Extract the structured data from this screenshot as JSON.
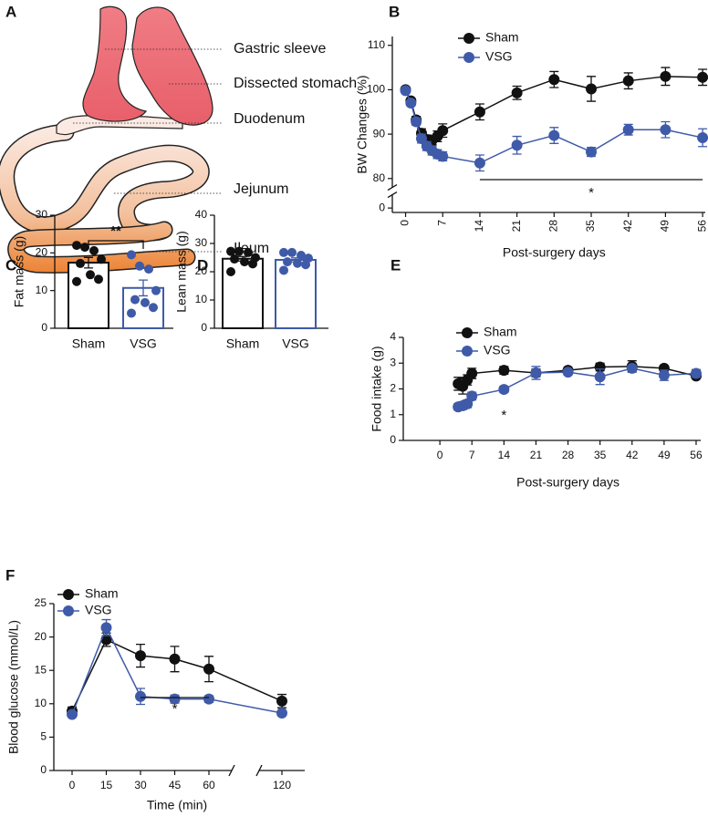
{
  "diagram": {
    "panel": "A",
    "labels": [
      "Gastric sleeve",
      "Dissected stomach",
      "Duodenum",
      "Jejunum",
      "Ileum"
    ]
  },
  "chart_data": [
    {
      "panel": "B",
      "type": "line",
      "x_label": "Post-surgery days",
      "y_label": "BW Changes (%)",
      "x": [
        0,
        1,
        2,
        3,
        4,
        5,
        6,
        7,
        14,
        21,
        28,
        35,
        42,
        49,
        56
      ],
      "xlim": [
        -2.5,
        56.5
      ],
      "xticks": [
        0,
        7,
        14,
        21,
        28,
        35,
        42,
        49,
        56
      ],
      "ylim": [
        -1,
        112
      ],
      "y_break": [
        3,
        78
      ],
      "yticks": [
        0,
        80,
        90,
        100,
        110
      ],
      "legend": "upper left",
      "series": [
        {
          "name": "Sham",
          "color": "#111111",
          "values": [
            100,
            97.5,
            93.2,
            90.2,
            88.8,
            88.6,
            89.5,
            90.8,
            95,
            99.3,
            102.3,
            100.2,
            102,
            103,
            102.8
          ],
          "errors": [
            0.3,
            0.6,
            0.8,
            1,
            1,
            1,
            1.2,
            1.5,
            1.8,
            1.5,
            1.8,
            2.8,
            1.8,
            2,
            1.8
          ]
        },
        {
          "name": "VSG",
          "color": "#3f5aa8",
          "values": [
            99.8,
            97,
            92.8,
            89,
            87.3,
            86.3,
            85.5,
            85,
            83.5,
            87.5,
            89.7,
            86,
            91,
            91,
            89.2
          ],
          "errors": [
            0.3,
            0.6,
            0.8,
            1,
            1,
            1,
            1,
            1,
            1.8,
            2,
            1.8,
            1,
            1.2,
            1.8,
            2
          ]
        }
      ],
      "significance": {
        "label": "*",
        "x": [
          14,
          56
        ]
      }
    },
    {
      "panel": "C",
      "type": "bar",
      "y_label": "Fat mass (g)",
      "categories": [
        "Sham",
        "VSG"
      ],
      "values": [
        17.4,
        10.7
      ],
      "errors": [
        1.4,
        2.1
      ],
      "points": [
        [
          22,
          21.5,
          20.6,
          18.3,
          17.2,
          14.2,
          13,
          12.4
        ],
        [
          19.5,
          16.5,
          15.7,
          10,
          7.6,
          6.8,
          5.5,
          4
        ]
      ],
      "colors": [
        "#111111",
        "#3f5aa8"
      ],
      "ylim": [
        0,
        30
      ],
      "yticks": [
        0,
        10,
        20,
        30
      ],
      "significance": {
        "label": "**"
      }
    },
    {
      "panel": "D",
      "type": "bar",
      "y_label": "Lean mass (g)",
      "categories": [
        "Sham",
        "VSG"
      ],
      "values": [
        24.6,
        24.2
      ],
      "errors": [
        0.8,
        0.7
      ],
      "points": [
        [
          27.2,
          27.2,
          26.8,
          25,
          24.5,
          23.5,
          22.8,
          20
        ],
        [
          26.8,
          26.8,
          25.8,
          24.8,
          23.5,
          23,
          22.5,
          20.5
        ]
      ],
      "colors": [
        "#111111",
        "#3f5aa8"
      ],
      "ylim": [
        0,
        40
      ],
      "yticks": [
        0,
        10,
        20,
        30,
        40
      ]
    },
    {
      "panel": "E",
      "type": "line",
      "x_label": "Post-surgery days",
      "y_label": "Food intake (g)",
      "x": [
        4,
        5,
        6,
        7,
        14,
        21,
        28,
        35,
        42,
        49,
        56
      ],
      "xlim": [
        -8,
        57
      ],
      "xticks": [
        0,
        7,
        14,
        21,
        28,
        35,
        42,
        49,
        56
      ],
      "ylim": [
        0,
        4
      ],
      "yticks": [
        0,
        1,
        2,
        3,
        4
      ],
      "legend": "upper left",
      "series": [
        {
          "name": "Sham",
          "color": "#111111",
          "values": [
            2.2,
            2.1,
            2.35,
            2.6,
            2.72,
            2.62,
            2.72,
            2.85,
            2.87,
            2.8,
            2.5
          ],
          "errors": [
            0.25,
            0.3,
            0.2,
            0.2,
            0.15,
            0.15,
            0.08,
            0.15,
            0.22,
            0.08,
            0.1
          ]
        },
        {
          "name": "VSG",
          "color": "#3f5aa8",
          "values": [
            1.3,
            1.35,
            1.42,
            1.72,
            1.98,
            2.62,
            2.65,
            2.47,
            2.8,
            2.53,
            2.6
          ],
          "errors": [
            0.12,
            0.15,
            0.15,
            0.15,
            0.12,
            0.25,
            0.1,
            0.3,
            0.1,
            0.2,
            0.15
          ]
        }
      ],
      "significance": {
        "label": "*",
        "x": [
          14
        ]
      }
    },
    {
      "panel": "F",
      "type": "line",
      "x_label": "Time (min)",
      "y_label": "Blood glucose (mmol/L)",
      "x": [
        0,
        15,
        30,
        45,
        60,
        120
      ],
      "xlim": [
        -8,
        130
      ],
      "x_break": [
        70,
        110
      ],
      "xticks": [
        0,
        15,
        30,
        45,
        60,
        120
      ],
      "ylim": [
        0,
        25
      ],
      "yticks": [
        0,
        5,
        10,
        15,
        20,
        25
      ],
      "legend": "upper left",
      "series": [
        {
          "name": "Sham",
          "color": "#111111",
          "values": [
            8.9,
            19.6,
            17.2,
            16.7,
            15.2,
            10.4
          ],
          "errors": [
            0.6,
            1,
            1.7,
            1.9,
            1.9,
            1
          ]
        },
        {
          "name": "VSG",
          "color": "#3f5aa8",
          "values": [
            8.4,
            21.4,
            11.1,
            10.7,
            10.7,
            8.6
          ],
          "errors": [
            0.3,
            1.2,
            1.2,
            0.6,
            0.5,
            0.4
          ]
        }
      ],
      "significance": {
        "label": "*",
        "x": [
          30,
          60
        ]
      }
    }
  ]
}
